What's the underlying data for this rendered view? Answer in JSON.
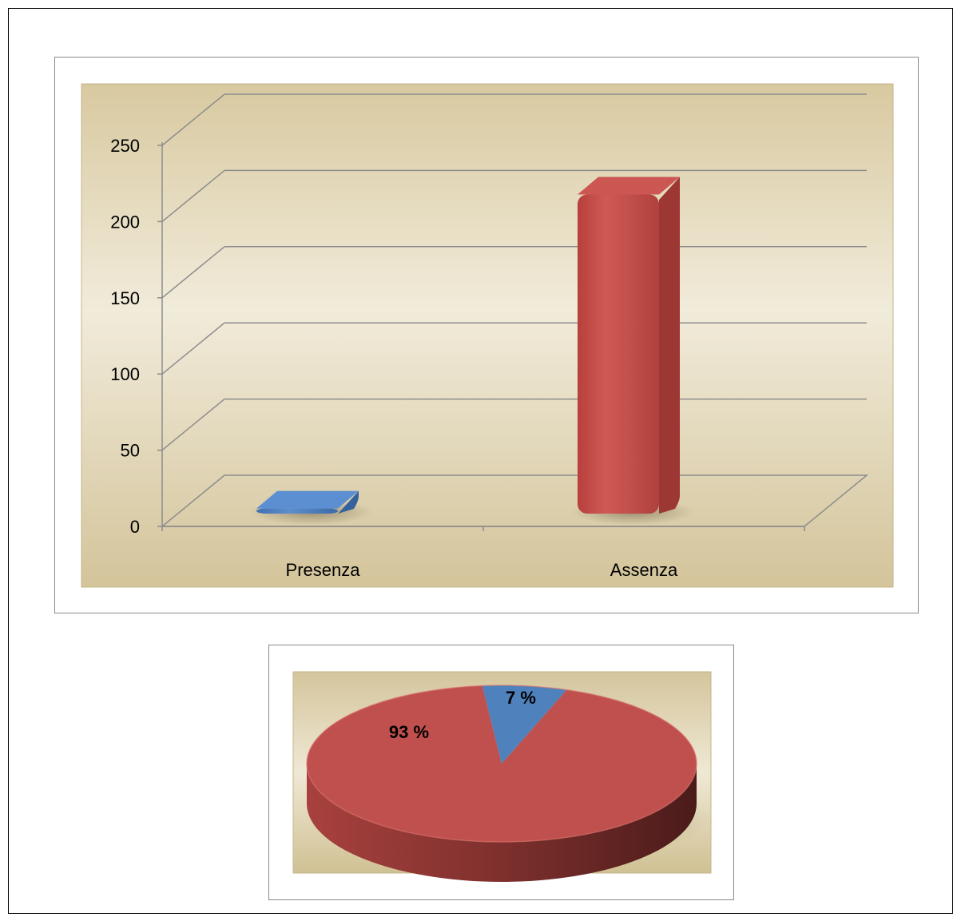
{
  "chart_data": [
    {
      "type": "bar",
      "categories": [
        "Presenza",
        "Assenza"
      ],
      "values": [
        17,
        223
      ],
      "ylim": [
        0,
        250
      ],
      "yticks": [
        "0",
        "50",
        "100",
        "150",
        "200",
        "250"
      ],
      "grid": true,
      "colors": [
        "#4f81bd",
        "#c0504d"
      ],
      "background": "#ddd1b0"
    },
    {
      "type": "pie",
      "categories": [
        "Presenza",
        "Assenza"
      ],
      "values": [
        7,
        93
      ],
      "labels": [
        "7 %",
        "93 %"
      ],
      "colors": [
        "#4f81bd",
        "#c0504d"
      ],
      "background": "#ddd1b0"
    }
  ]
}
